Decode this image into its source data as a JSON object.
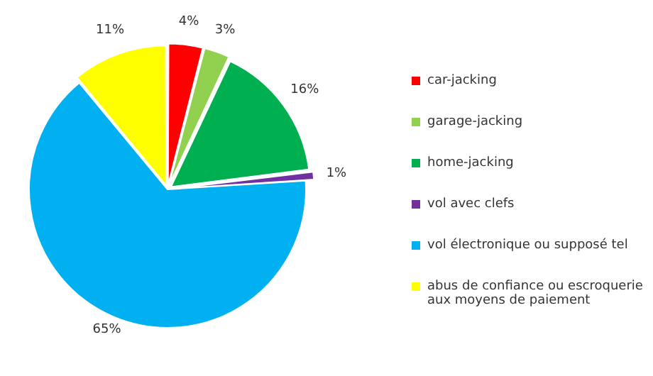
{
  "chart_data": {
    "type": "pie",
    "categories": [
      "car-jacking",
      "garage-jacking",
      "home-jacking",
      "vol avec clefs",
      "vol électronique ou supposé tel",
      "abus de confiance ou escroquerie aux moyens de paiement"
    ],
    "values": [
      4,
      3,
      16,
      1,
      65,
      11
    ],
    "colors": [
      "#ff0000",
      "#92d050",
      "#00b050",
      "#7030a0",
      "#00b0f0",
      "#ffff00"
    ],
    "value_labels": [
      "4%",
      "3%",
      "16%",
      "1%",
      "65%",
      "11%"
    ],
    "legend": "right"
  }
}
